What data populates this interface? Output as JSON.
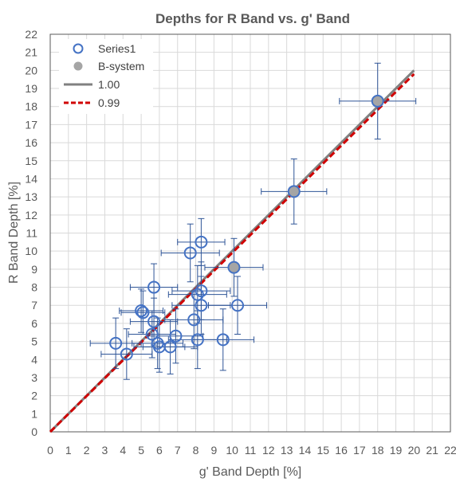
{
  "chart_data": {
    "type": "scatter",
    "title": "Depths for R Band vs. g' Band",
    "xlabel": "g' Band Depth [%]",
    "ylabel": "R Band Depth [%]",
    "xlim": [
      0,
      22
    ],
    "ylim": [
      0,
      22
    ],
    "xticks": [
      "0",
      "1",
      "2",
      "3",
      "4",
      "5",
      "6",
      "7",
      "8",
      "9",
      "10",
      "11",
      "12",
      "13",
      "14",
      "15",
      "16",
      "17",
      "18",
      "19",
      "20",
      "21",
      "22"
    ],
    "yticks": [
      "0",
      "1",
      "2",
      "3",
      "4",
      "5",
      "6",
      "7",
      "8",
      "9",
      "10",
      "11",
      "12",
      "13",
      "14",
      "15",
      "16",
      "17",
      "18",
      "19",
      "20",
      "21",
      "22"
    ],
    "grid": true,
    "legend_position": "top-left",
    "colors": {
      "series1": "#4472c4",
      "bsystem": "#a5a5a5",
      "line100": "#808080",
      "line099": "#c00000",
      "errorbar": "#2f5597"
    },
    "series": [
      {
        "name": "Series1",
        "marker": "open-circle",
        "points": [
          {
            "x": 3.6,
            "y": 4.9,
            "xerr": 1.4,
            "yerr": 1.4
          },
          {
            "x": 4.2,
            "y": 4.3,
            "xerr": 1.4,
            "yerr": 1.4
          },
          {
            "x": 5.0,
            "y": 6.7,
            "xerr": 1.2,
            "yerr": 1.2
          },
          {
            "x": 5.1,
            "y": 6.6,
            "xerr": 1.2,
            "yerr": 1.2
          },
          {
            "x": 5.7,
            "y": 8.0,
            "xerr": 1.3,
            "yerr": 1.3
          },
          {
            "x": 5.7,
            "y": 6.1,
            "xerr": 1.3,
            "yerr": 1.3
          },
          {
            "x": 5.6,
            "y": 5.4,
            "xerr": 1.3,
            "yerr": 1.3
          },
          {
            "x": 5.9,
            "y": 4.9,
            "xerr": 1.4,
            "yerr": 1.4
          },
          {
            "x": 6.0,
            "y": 4.7,
            "xerr": 1.4,
            "yerr": 1.4
          },
          {
            "x": 6.6,
            "y": 4.7,
            "xerr": 1.5,
            "yerr": 1.5
          },
          {
            "x": 6.9,
            "y": 5.3,
            "xerr": 1.5,
            "yerr": 1.5
          },
          {
            "x": 7.7,
            "y": 9.9,
            "xerr": 1.6,
            "yerr": 1.6
          },
          {
            "x": 7.9,
            "y": 6.2,
            "xerr": 1.6,
            "yerr": 1.6
          },
          {
            "x": 8.1,
            "y": 5.1,
            "xerr": 1.6,
            "yerr": 1.6
          },
          {
            "x": 8.1,
            "y": 7.6,
            "xerr": 1.6,
            "yerr": 1.6
          },
          {
            "x": 8.3,
            "y": 7.8,
            "xerr": 1.6,
            "yerr": 1.6
          },
          {
            "x": 8.3,
            "y": 10.5,
            "xerr": 1.3,
            "yerr": 1.3
          },
          {
            "x": 8.3,
            "y": 7.0,
            "xerr": 1.6,
            "yerr": 1.6
          },
          {
            "x": 9.5,
            "y": 5.1,
            "xerr": 1.7,
            "yerr": 1.7
          },
          {
            "x": 10.3,
            "y": 7.0,
            "xerr": 1.6,
            "yerr": 1.6
          }
        ]
      },
      {
        "name": "B-system",
        "marker": "filled-circle",
        "points": [
          {
            "x": 10.1,
            "y": 9.1,
            "xerr": 1.6,
            "yerr": 1.6
          },
          {
            "x": 13.4,
            "y": 13.3,
            "xerr": 1.8,
            "yerr": 1.8
          },
          {
            "x": 18.0,
            "y": 18.3,
            "xerr": 2.1,
            "yerr": 2.1
          }
        ]
      }
    ],
    "lines": [
      {
        "name": "1.00",
        "slope": 1.0,
        "x_end": 20,
        "style": "solid"
      },
      {
        "name": "0.99",
        "slope": 0.99,
        "x_end": 20,
        "style": "dashed"
      }
    ]
  }
}
